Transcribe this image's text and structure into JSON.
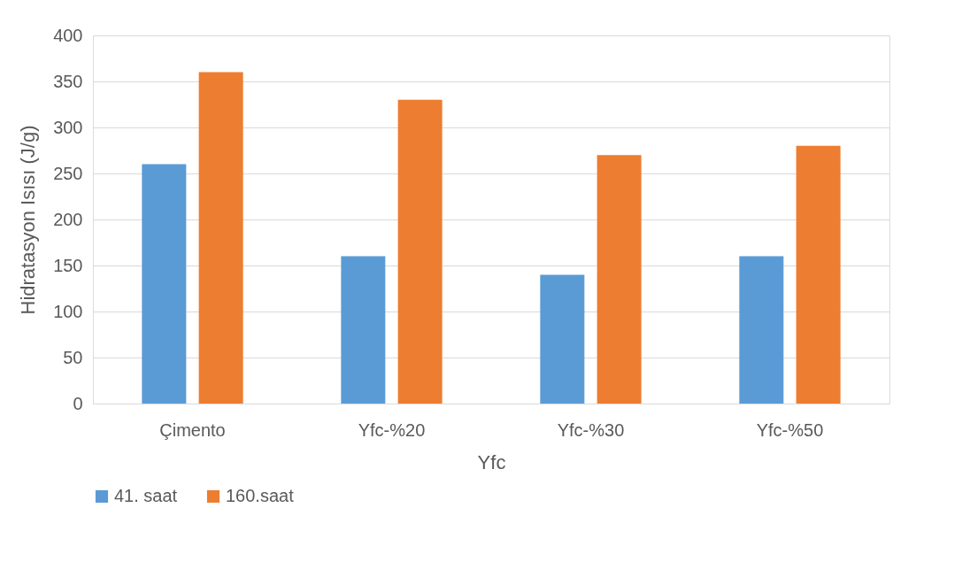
{
  "chart_data": {
    "type": "bar",
    "xlabel": "Yfc",
    "ylabel": "Hidratasyon Isısı (J/g)",
    "categories": [
      "Çimento",
      "Yfc-%20",
      "Yfc-%30",
      "Yfc-%50"
    ],
    "series": [
      {
        "name": "41. saat",
        "color": "#5b9bd5",
        "values": [
          260,
          160,
          140,
          160
        ]
      },
      {
        "name": "160.saat",
        "color": "#ed7d31",
        "values": [
          360,
          330,
          270,
          280
        ]
      }
    ],
    "ylim": [
      0,
      400
    ],
    "yticks": [
      0,
      50,
      100,
      150,
      200,
      250,
      300,
      350,
      400
    ],
    "grid": "y",
    "legend": "bottom"
  }
}
